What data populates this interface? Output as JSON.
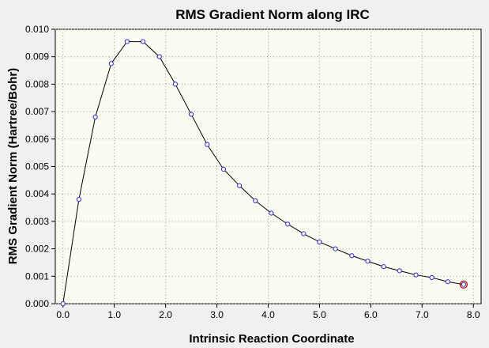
{
  "chart_data": {
    "type": "line",
    "title": "RMS Gradient Norm along IRC",
    "xlabel": "Intrinsic Reaction Coordinate",
    "ylabel": "RMS Gradient Norm (Hartree/Bohr)",
    "xlim": [
      -0.15,
      8.15
    ],
    "ylim": [
      0,
      0.01
    ],
    "x_ticks": [
      "0.0",
      "1.0",
      "2.0",
      "3.0",
      "4.0",
      "5.0",
      "6.0",
      "7.0",
      "8.0"
    ],
    "x_tick_values": [
      0,
      1,
      2,
      3,
      4,
      5,
      6,
      7,
      8
    ],
    "y_ticks": [
      "0.000",
      "0.001",
      "0.002",
      "0.003",
      "0.004",
      "0.005",
      "0.006",
      "0.007",
      "0.008",
      "0.009",
      "0.010"
    ],
    "y_tick_values": [
      0,
      0.001,
      0.002,
      0.003,
      0.004,
      0.005,
      0.006,
      0.007,
      0.008,
      0.009,
      0.01
    ],
    "grid": true,
    "marker_color": "#2b2bd6",
    "highlight_color": "#c00000",
    "series": [
      {
        "x": [
          0.0,
          0.31,
          0.63,
          0.94,
          1.25,
          1.56,
          1.88,
          2.19,
          2.5,
          2.81,
          3.13,
          3.44,
          3.75,
          4.06,
          4.38,
          4.69,
          5.0,
          5.31,
          5.63,
          5.94,
          6.25,
          6.56,
          6.88,
          7.19,
          7.5,
          7.81
        ],
        "y": [
          0.0,
          0.0038,
          0.0068,
          0.00875,
          0.00955,
          0.00955,
          0.009,
          0.008,
          0.0069,
          0.0058,
          0.0049,
          0.0043,
          0.00375,
          0.0033,
          0.0029,
          0.00255,
          0.00225,
          0.002,
          0.00175,
          0.00155,
          0.00135,
          0.0012,
          0.00105,
          0.00095,
          0.0008,
          0.0007
        ]
      }
    ],
    "highlight_point": {
      "x": 7.81,
      "y": 0.0007
    }
  }
}
